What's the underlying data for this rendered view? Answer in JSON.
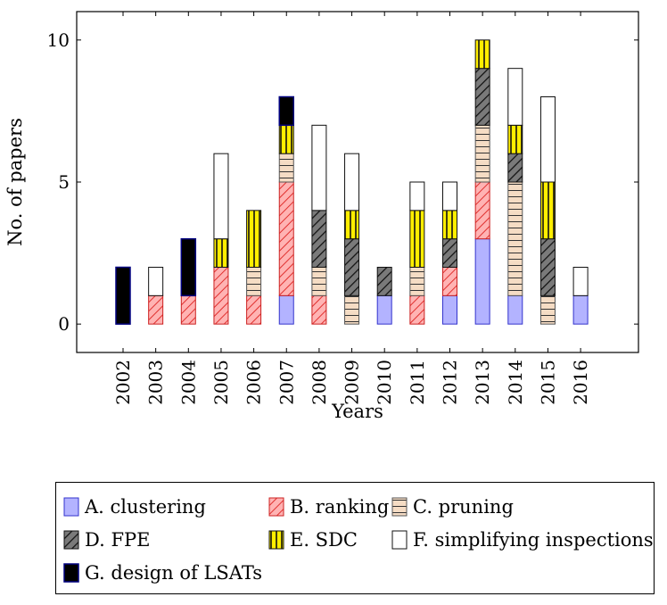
{
  "chart_data": {
    "type": "bar",
    "stacked": true,
    "xlabel": "Years",
    "ylabel": "No. of papers",
    "ylim": [
      -1,
      11
    ],
    "yticks": [
      0,
      5,
      10
    ],
    "grid": false,
    "legend_position": "bottom",
    "categories": [
      "2002",
      "2003",
      "2004",
      "2005",
      "2006",
      "2007",
      "2008",
      "2009",
      "2010",
      "2011",
      "2012",
      "2013",
      "2014",
      "2015",
      "2016"
    ],
    "series": [
      {
        "name": "A. clustering",
        "color": "#b3b3ff",
        "pattern": "solid",
        "values": [
          0,
          0,
          0,
          0,
          0,
          1,
          0,
          0,
          1,
          0,
          1,
          3,
          1,
          0,
          1
        ]
      },
      {
        "name": "B. ranking",
        "color": "#ff9999",
        "pattern": "diagonal-red",
        "values": [
          0,
          1,
          1,
          2,
          1,
          4,
          1,
          0,
          0,
          1,
          1,
          2,
          0,
          0,
          0
        ]
      },
      {
        "name": "C. pruning",
        "color": "#f5dcc4",
        "pattern": "horizontal",
        "values": [
          0,
          0,
          0,
          0,
          1,
          1,
          1,
          1,
          0,
          1,
          0,
          2,
          4,
          1,
          0
        ]
      },
      {
        "name": "D. FPE",
        "color": "#7f7f7f",
        "pattern": "diagonal-black",
        "values": [
          0,
          0,
          0,
          0,
          0,
          0,
          2,
          2,
          1,
          0,
          1,
          2,
          1,
          2,
          0
        ]
      },
      {
        "name": "E. SDC",
        "color": "#ffee00",
        "pattern": "vertical",
        "values": [
          0,
          0,
          0,
          1,
          2,
          1,
          0,
          1,
          0,
          2,
          1,
          1,
          1,
          2,
          0
        ]
      },
      {
        "name": "F. simplifying inspections",
        "color": "#ffffff",
        "pattern": "none",
        "values": [
          0,
          1,
          0,
          3,
          0,
          0,
          3,
          2,
          0,
          1,
          1,
          0,
          2,
          3,
          1
        ]
      },
      {
        "name": "G. design of LSATs",
        "color": "#000000",
        "pattern": "solid",
        "values": [
          2,
          0,
          2,
          0,
          0,
          1,
          0,
          0,
          0,
          0,
          0,
          0,
          0,
          0,
          0
        ]
      }
    ]
  }
}
